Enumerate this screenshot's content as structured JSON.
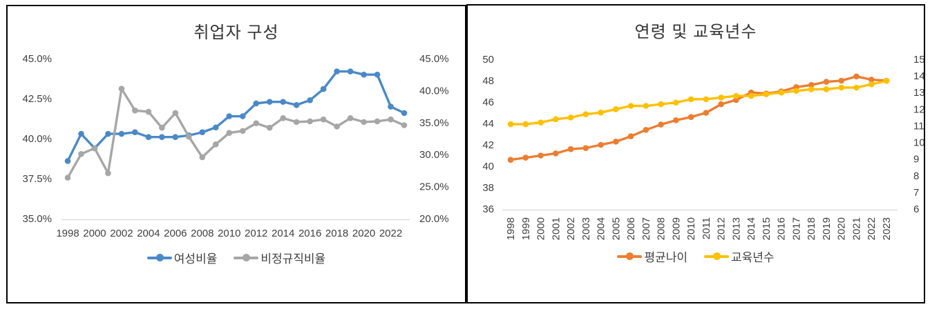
{
  "page": {
    "background": "#ffffff"
  },
  "chart_data": [
    {
      "type": "line",
      "title": "취업자 구성",
      "legend_position": "bottom",
      "grid": "off",
      "categories": [
        "1998",
        "1999",
        "2000",
        "2001",
        "2002",
        "2003",
        "2004",
        "2005",
        "2006",
        "2007",
        "2008",
        "2009",
        "2010",
        "2011",
        "2012",
        "2013",
        "2014",
        "2015",
        "2016",
        "2017",
        "2018",
        "2019",
        "2020",
        "2021",
        "2022",
        "2023"
      ],
      "x_tick_labels": [
        "1998",
        "2000",
        "2002",
        "2004",
        "2006",
        "2008",
        "2010",
        "2012",
        "2014",
        "2016",
        "2018",
        "2020",
        "2022"
      ],
      "axes": {
        "y_left": {
          "min": 35,
          "max": 45,
          "ticks": [
            "45.0%",
            "42.5%",
            "40.0%",
            "37.5%",
            "35.0%"
          ]
        },
        "y_right": {
          "min": 20,
          "max": 45,
          "ticks": [
            "45.0%",
            "40.0%",
            "35.0%",
            "30.0%",
            "25.0%",
            "20.0%"
          ]
        }
      },
      "series": [
        {
          "name": "여성비율",
          "axis": "left",
          "color": "#4A89C8",
          "values": [
            38.6,
            40.3,
            39.4,
            40.3,
            40.3,
            40.4,
            40.1,
            40.1,
            40.1,
            40.2,
            40.4,
            40.7,
            41.4,
            41.4,
            42.2,
            42.3,
            42.3,
            42.1,
            42.4,
            43.1,
            44.2,
            44.2,
            44.0,
            44.0,
            42.0,
            41.6
          ]
        },
        {
          "name": "비정규직비율",
          "axis": "right",
          "color": "#A6A6A6",
          "values": [
            26.4,
            30.1,
            31.0,
            27.1,
            40.3,
            36.9,
            36.7,
            34.2,
            36.5,
            32.8,
            29.6,
            31.6,
            33.4,
            33.7,
            34.9,
            34.2,
            35.7,
            35.1,
            35.2,
            35.5,
            34.4,
            35.7,
            35.1,
            35.2,
            35.5,
            34.6
          ]
        }
      ]
    },
    {
      "type": "line",
      "title": "연령 및 교육년수",
      "legend_position": "bottom",
      "grid": "off",
      "categories": [
        "1998",
        "1999",
        "2000",
        "2001",
        "2002",
        "2003",
        "2004",
        "2005",
        "2006",
        "2007",
        "2008",
        "2009",
        "2010",
        "2011",
        "2012",
        "2013",
        "2014",
        "2015",
        "2016",
        "2017",
        "2018",
        "2019",
        "2020",
        "2021",
        "2022",
        "2023"
      ],
      "x_tick_labels": [
        "1998",
        "1999",
        "2000",
        "2001",
        "2002",
        "2003",
        "2004",
        "2005",
        "2006",
        "2007",
        "2008",
        "2009",
        "2010",
        "2011",
        "2012",
        "2013",
        "2014",
        "2015",
        "2016",
        "2017",
        "2018",
        "2019",
        "2020",
        "2021",
        "2022",
        "2023"
      ],
      "axes": {
        "y_left": {
          "min": 36,
          "max": 50,
          "ticks": [
            "50",
            "48",
            "46",
            "44",
            "42",
            "40",
            "38",
            "36"
          ]
        },
        "y_right": {
          "min": 6,
          "max": 15,
          "ticks": [
            "15",
            "14",
            "13",
            "12",
            "11",
            "10",
            "9",
            "8",
            "7",
            "6"
          ]
        }
      },
      "series": [
        {
          "name": "평균나이",
          "axis": "left",
          "color": "#ED7D31",
          "values": [
            40.6,
            40.8,
            41.0,
            41.2,
            41.6,
            41.7,
            42.0,
            42.3,
            42.8,
            43.4,
            43.9,
            44.3,
            44.6,
            45.0,
            45.8,
            46.2,
            46.9,
            46.8,
            47.0,
            47.4,
            47.6,
            47.9,
            48.0,
            48.4,
            48.1,
            48.0
          ]
        },
        {
          "name": "교육년수",
          "axis": "right",
          "color": "#FFC000",
          "values": [
            11.1,
            11.1,
            11.2,
            11.4,
            11.5,
            11.7,
            11.8,
            12.0,
            12.2,
            12.2,
            12.3,
            12.4,
            12.6,
            12.6,
            12.7,
            12.8,
            12.8,
            12.9,
            13.0,
            13.1,
            13.2,
            13.2,
            13.3,
            13.3,
            13.5,
            13.7
          ]
        }
      ]
    }
  ],
  "style": {
    "axis_line_color": "#D9D9D9",
    "tick_text_color": "#404040",
    "panel_border_color": "#000000"
  }
}
